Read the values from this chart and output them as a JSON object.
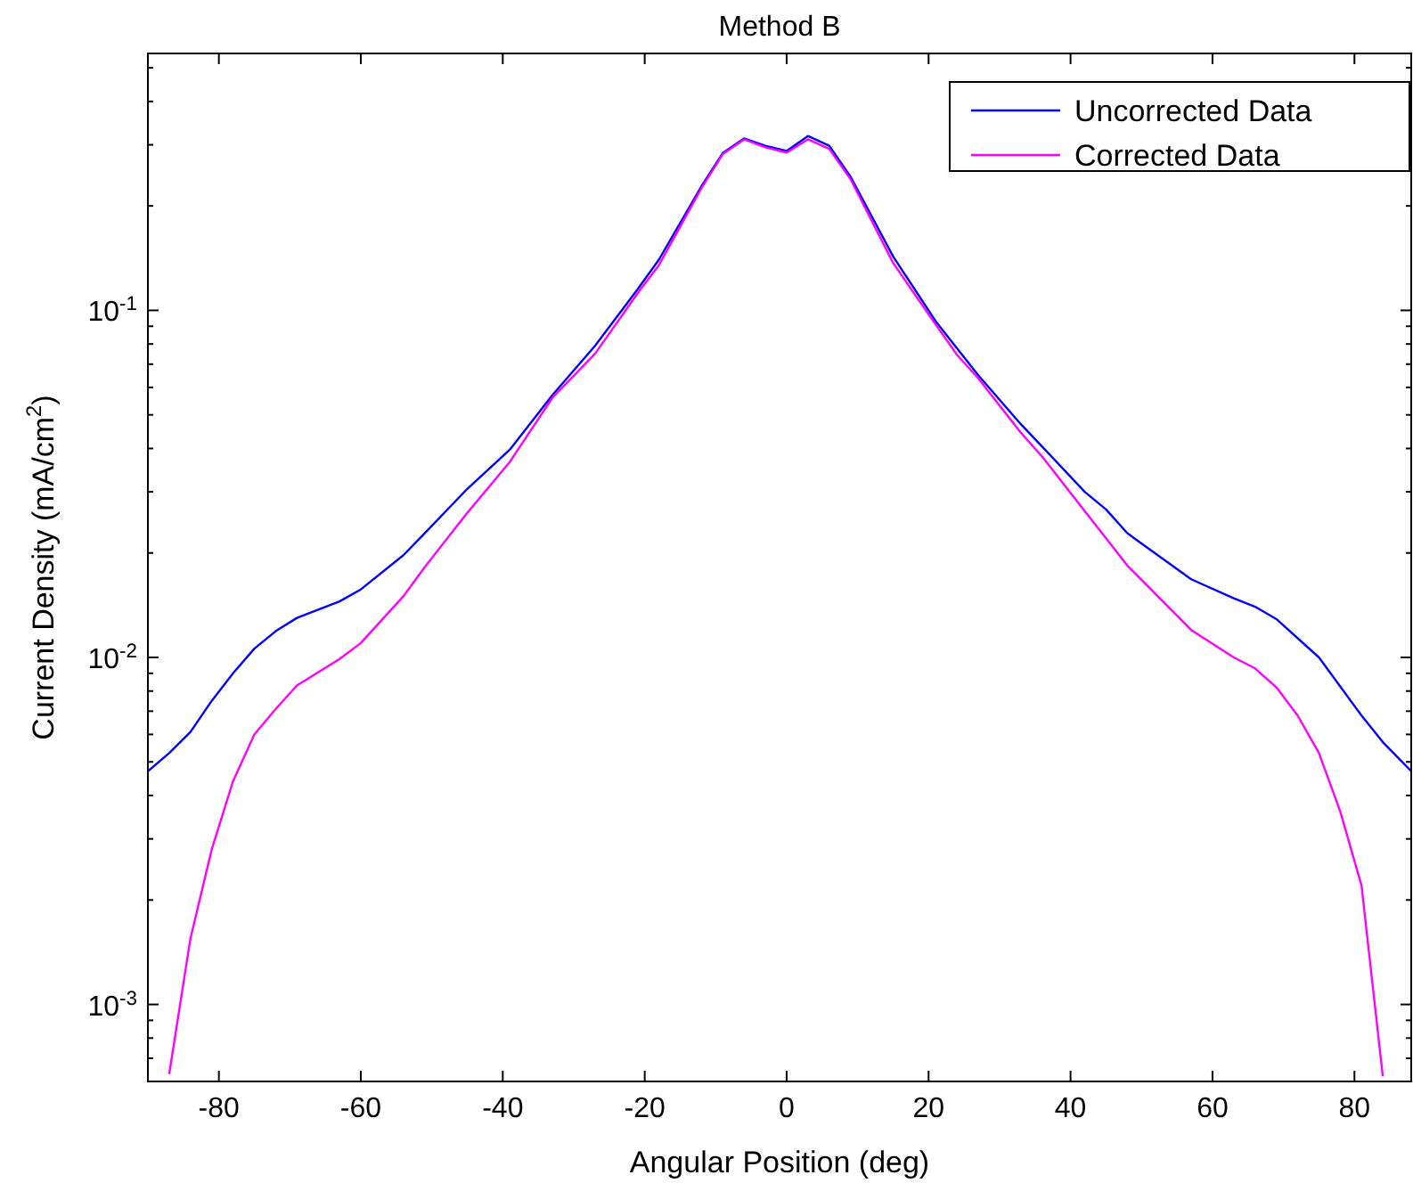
{
  "chart_data": {
    "type": "line",
    "title": "Method B",
    "xlabel": "Angular Position (deg)",
    "ylabel": "Current Density (mA/cm$^{2}$)",
    "log": "y",
    "grid": false,
    "legend": "top right",
    "line_style": "solid",
    "marker": "none",
    "xlim": [
      -90,
      88
    ],
    "xticks": [
      -80,
      -60,
      -40,
      -20,
      0,
      20,
      40,
      60,
      80
    ],
    "ylim": [
      0.0006,
      0.55
    ],
    "yticks": [
      {
        "value": 0.0006,
        "label": null
      },
      {
        "value": 0.0007,
        "label": null
      },
      {
        "value": 0.0008,
        "label": null
      },
      {
        "value": 0.0009,
        "label": null
      },
      {
        "value": 0.001,
        "label": "10$^{-3}$"
      },
      {
        "value": 0.002,
        "label": null
      },
      {
        "value": 0.003,
        "label": null
      },
      {
        "value": 0.004,
        "label": null
      },
      {
        "value": 0.005,
        "label": null
      },
      {
        "value": 0.006,
        "label": null
      },
      {
        "value": 0.007,
        "label": null
      },
      {
        "value": 0.008,
        "label": null
      },
      {
        "value": 0.009,
        "label": null
      },
      {
        "value": 0.01,
        "label": "10$^{-2}$"
      },
      {
        "value": 0.02,
        "label": null
      },
      {
        "value": 0.03,
        "label": null
      },
      {
        "value": 0.04,
        "label": null
      },
      {
        "value": 0.05,
        "label": null
      },
      {
        "value": 0.06,
        "label": null
      },
      {
        "value": 0.07,
        "label": null
      },
      {
        "value": 0.08,
        "label": null
      },
      {
        "value": 0.09,
        "label": null
      },
      {
        "value": 0.1,
        "label": "10$^{-1}$"
      },
      {
        "value": 0.2,
        "label": null
      },
      {
        "value": 0.3,
        "label": null
      },
      {
        "value": 0.4,
        "label": null
      },
      {
        "value": 0.5,
        "label": null
      }
    ],
    "series": [
      {
        "name": "Uncorrected Data",
        "color": "#0000ff",
        "x": [
          -90,
          -87,
          -84,
          -81,
          -78,
          -75,
          -72,
          -69,
          -63,
          -60,
          -54,
          -51,
          -45,
          -39,
          -33,
          -27,
          -21,
          -18,
          -12,
          -9,
          -6,
          -3,
          0,
          3,
          6,
          9,
          15,
          21,
          27,
          33,
          36,
          42,
          45,
          48,
          57,
          63,
          66,
          69,
          75,
          81,
          84,
          88
        ],
        "values": [
          0.0047,
          0.0053,
          0.0061,
          0.0075,
          0.009,
          0.0106,
          0.0119,
          0.013,
          0.0145,
          0.0157,
          0.0197,
          0.0228,
          0.0306,
          0.0397,
          0.057,
          0.079,
          0.115,
          0.14,
          0.228,
          0.284,
          0.313,
          0.298,
          0.288,
          0.318,
          0.298,
          0.243,
          0.143,
          0.093,
          0.065,
          0.047,
          0.0405,
          0.03,
          0.0267,
          0.0228,
          0.0168,
          0.0148,
          0.014,
          0.0129,
          0.01,
          0.0068,
          0.0057,
          0.0047
        ]
      },
      {
        "name": "Corrected Data",
        "color": "#ff00ff",
        "x": [
          -87,
          -84,
          -81,
          -78,
          -75,
          -72,
          -69,
          -63,
          -60,
          -54,
          -51,
          -45,
          -39,
          -33,
          -27,
          -21,
          -18,
          -12,
          -9,
          -6,
          -3,
          0,
          3,
          6,
          9,
          15,
          21,
          24,
          27,
          33,
          36,
          42,
          48,
          57,
          63,
          66,
          69,
          72,
          75,
          78,
          81,
          84
        ],
        "values": [
          0.00063,
          0.00155,
          0.0028,
          0.0044,
          0.006,
          0.0071,
          0.0083,
          0.0099,
          0.011,
          0.015,
          0.0182,
          0.0261,
          0.0366,
          0.056,
          0.075,
          0.112,
          0.135,
          0.225,
          0.282,
          0.311,
          0.295,
          0.285,
          0.311,
          0.292,
          0.239,
          0.137,
          0.091,
          0.0745,
          0.0637,
          0.0444,
          0.0379,
          0.0264,
          0.0184,
          0.012,
          0.01,
          0.0093,
          0.0082,
          0.0068,
          0.0053,
          0.0036,
          0.0022,
          0.00062
        ]
      }
    ]
  }
}
